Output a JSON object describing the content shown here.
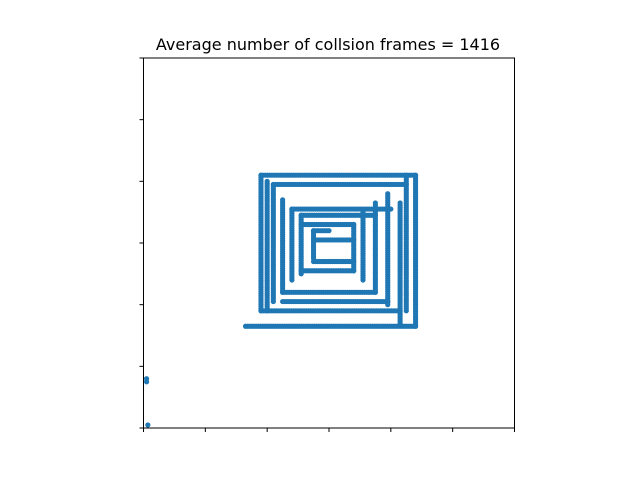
{
  "chart_data": {
    "type": "scatter",
    "title": "Average number of collsion frames = 1416",
    "xlabel": "",
    "ylabel": "",
    "xlim": [
      0,
      6
    ],
    "ylim": [
      0,
      6
    ],
    "xticks": [
      0,
      1,
      2,
      3,
      4,
      5,
      6
    ],
    "yticks": [
      0,
      1,
      2,
      3,
      4,
      5,
      6
    ],
    "tick_labels_shown": false,
    "grid": false,
    "marker_color": "#1f77b4",
    "segments": [
      {
        "x": [
          1.65,
          4.4
        ],
        "y": [
          1.65,
          1.65
        ]
      },
      {
        "x": [
          1.9,
          4.15
        ],
        "y": [
          1.9,
          1.9
        ]
      },
      {
        "x": [
          2.25,
          3.95
        ],
        "y": [
          2.05,
          2.05
        ]
      },
      {
        "x": [
          2.25,
          3.75
        ],
        "y": [
          2.2,
          2.2
        ]
      },
      {
        "x": [
          2.55,
          3.4
        ],
        "y": [
          2.55,
          2.55
        ]
      },
      {
        "x": [
          2.75,
          3.4
        ],
        "y": [
          2.7,
          2.7
        ]
      },
      {
        "x": [
          1.9,
          4.4
        ],
        "y": [
          4.1,
          4.1
        ]
      },
      {
        "x": [
          2.1,
          4.25
        ],
        "y": [
          3.95,
          3.95
        ]
      },
      {
        "x": [
          2.4,
          4.0
        ],
        "y": [
          3.55,
          3.55
        ]
      },
      {
        "x": [
          2.55,
          3.75
        ],
        "y": [
          3.45,
          3.45
        ]
      },
      {
        "x": [
          2.55,
          3.4
        ],
        "y": [
          3.3,
          3.3
        ]
      },
      {
        "x": [
          2.75,
          3.4
        ],
        "y": [
          3.05,
          3.05
        ]
      },
      {
        "x": [
          2.75,
          3.0
        ],
        "y": [
          3.2,
          3.2
        ]
      },
      {
        "x": [
          1.9,
          1.9
        ],
        "y": [
          1.9,
          4.1
        ]
      },
      {
        "x": [
          2.0,
          2.0
        ],
        "y": [
          1.9,
          4.0
        ]
      },
      {
        "x": [
          2.1,
          2.1
        ],
        "y": [
          2.05,
          3.95
        ]
      },
      {
        "x": [
          2.25,
          2.25
        ],
        "y": [
          2.2,
          3.7
        ]
      },
      {
        "x": [
          2.4,
          2.4
        ],
        "y": [
          2.4,
          3.55
        ]
      },
      {
        "x": [
          2.55,
          2.55
        ],
        "y": [
          2.5,
          3.45
        ]
      },
      {
        "x": [
          2.75,
          2.75
        ],
        "y": [
          2.75,
          3.2
        ]
      },
      {
        "x": [
          3.4,
          3.4
        ],
        "y": [
          2.55,
          3.3
        ]
      },
      {
        "x": [
          3.55,
          3.55
        ],
        "y": [
          2.4,
          3.5
        ]
      },
      {
        "x": [
          3.75,
          3.75
        ],
        "y": [
          2.2,
          3.65
        ]
      },
      {
        "x": [
          3.95,
          3.95
        ],
        "y": [
          2.0,
          3.8
        ]
      },
      {
        "x": [
          4.15,
          4.15
        ],
        "y": [
          1.7,
          3.65
        ]
      },
      {
        "x": [
          4.25,
          4.25
        ],
        "y": [
          1.9,
          4.1
        ]
      },
      {
        "x": [
          4.4,
          4.4
        ],
        "y": [
          1.65,
          4.1
        ]
      }
    ],
    "isolated_points": [
      {
        "x": 0.05,
        "y": 0.75
      },
      {
        "x": 0.05,
        "y": 0.8
      },
      {
        "x": 0.07,
        "y": 0.05
      }
    ]
  }
}
